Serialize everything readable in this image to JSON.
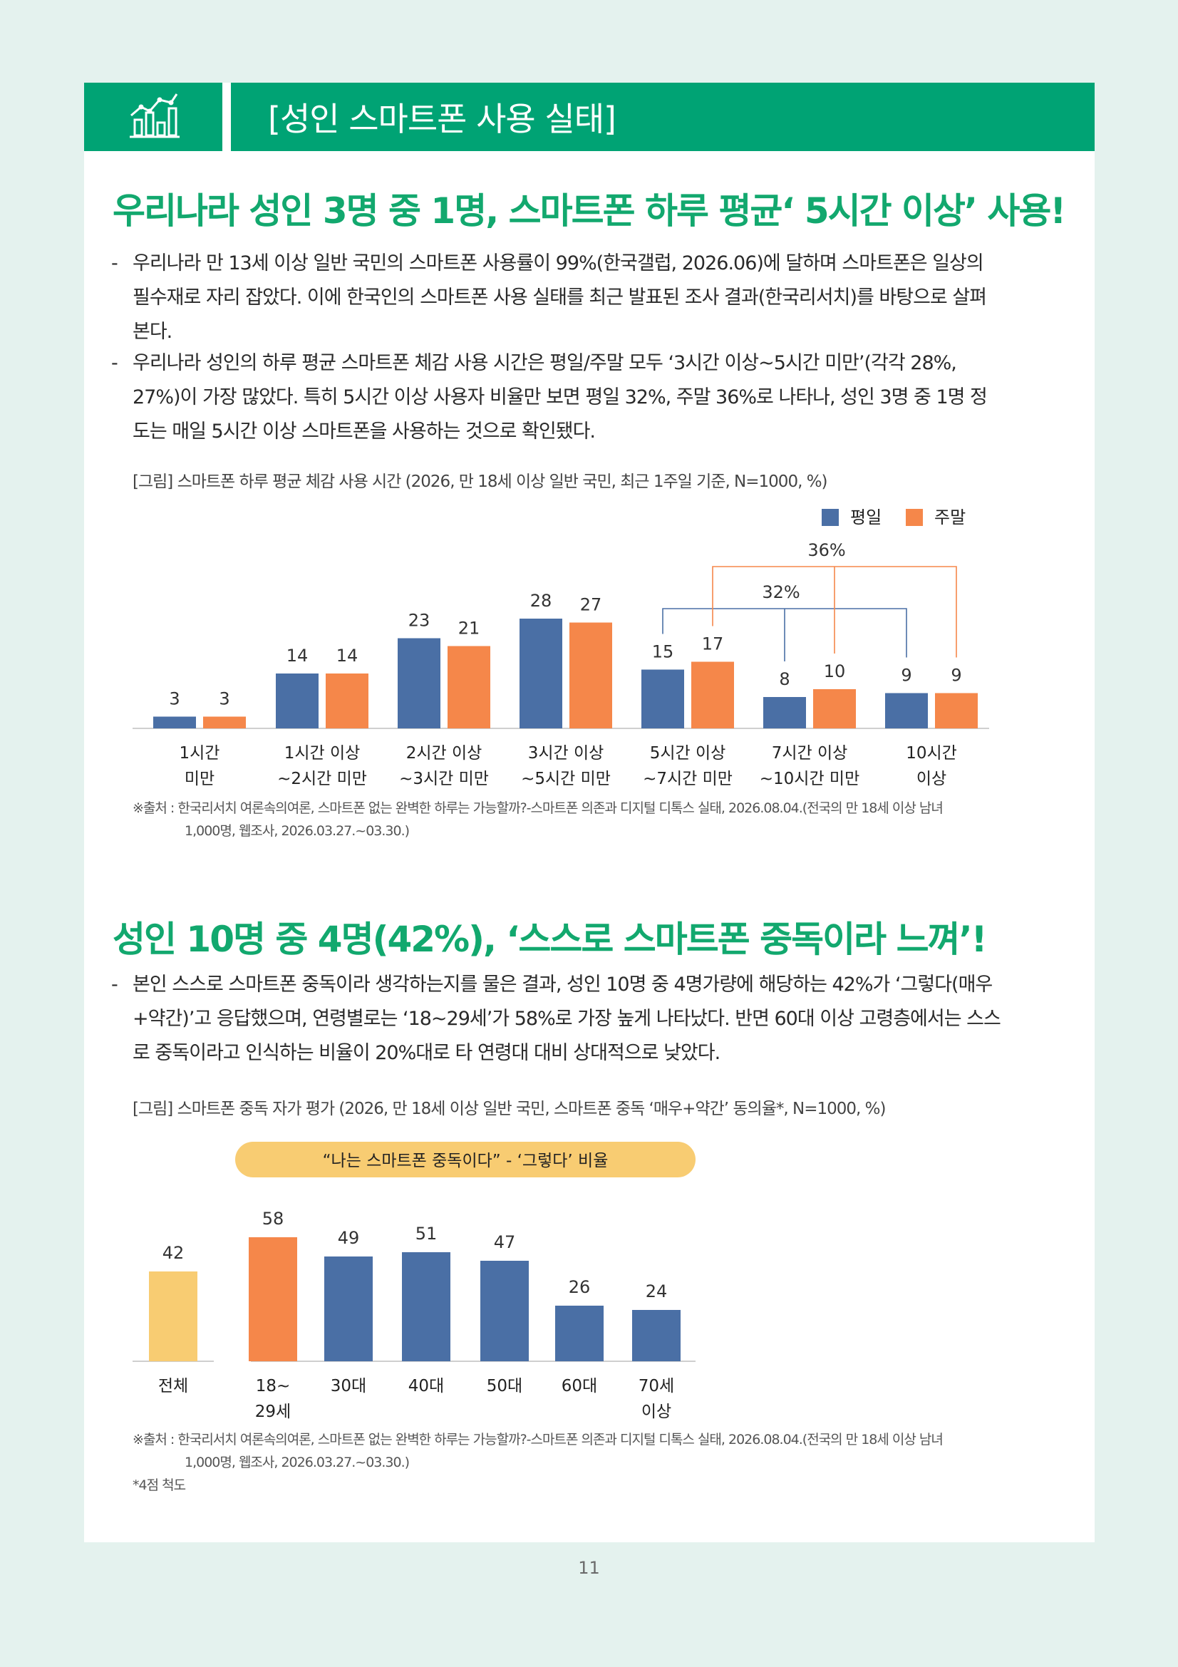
{
  "header": {
    "title": "[성인 스마트폰 사용 실태]",
    "icon": "bar-chart-growth-icon"
  },
  "section1": {
    "headline": "우리나라 성인 3명 중 1명, 스마트폰 하루 평균‘ 5시간 이상’ 사용!",
    "bullets": [
      {
        "line1": "우리나라 만 13세 이상 일반 국민의 스마트폰 사용률이 99%(한국갤럽, 2026.06)에 달하며 스마트폰은 일상의",
        "line2": "필수재로 자리 잡았다. 이에 한국인의 스마트폰 사용 실태를 최근 발표된 조사 결과(한국리서치)를 바탕으로 살펴",
        "line3": "본다."
      },
      {
        "line1": "우리나라 성인의 하루 평균 스마트폰 체감 사용 시간은 평일/주말 모두 ‘3시간 이상~5시간 미만’(각각 28%,",
        "line2": "27%)이 가장 많았다. 특히 5시간 이상 사용자 비율만 보면 평일 32%, 주말 36%로 나타나, 성인 3명 중 1명 정",
        "line3": "도는 매일 5시간 이상 스마트폰을 사용하는 것으로 확인됐다."
      }
    ],
    "caption": "[그림] 스마트폰 하루 평균 체감 사용 시간 (2026, 만 18세 이상 일반 국민, 최근 1주일 기준,  N=1000, %)",
    "source_line1": "※출처 : 한국리서치 여론속의여론, 스마트폰 없는 완벽한 하루는 가능할까?-스마트폰 의존과 디지털 디톡스 실태, 2026.08.04.(전국의 만 18세 이상 남녀",
    "source_line2": "1,000명, 웹조사, 2026.03.27.~03.30.)"
  },
  "chart1_data": {
    "type": "bar",
    "categories": [
      [
        "1시간",
        "미만"
      ],
      [
        "1시간 이상",
        "~2시간 미만"
      ],
      [
        "2시간 이상",
        "~3시간 미만"
      ],
      [
        "3시간 이상",
        "~5시간 미만"
      ],
      [
        "5시간 이상",
        "~7시간 미만"
      ],
      [
        "7시간 이상",
        "~10시간 미만"
      ],
      [
        "10시간",
        "이상"
      ]
    ],
    "series": [
      {
        "name": "평일",
        "values": [
          3,
          14,
          23,
          28,
          15,
          8,
          9
        ],
        "color": "#4a6fa5"
      },
      {
        "name": "주말",
        "values": [
          3,
          14,
          21,
          27,
          17,
          10,
          9
        ],
        "color": "#f5874a"
      }
    ],
    "bracket_labels": [
      "32%",
      "36%"
    ],
    "legend_position": "top-right",
    "ylim": [
      0,
      30
    ]
  },
  "section2": {
    "headline": "성인 10명 중 4명(42%), ‘스스로 스마트폰 중독이라 느껴’!",
    "bullets": [
      {
        "line1": "본인 스스로 스마트폰 중독이라 생각하는지를 물은 결과, 성인 10명 중 4명가량에 해당하는 42%가 ‘그렇다(매우",
        "line2": "+약간)’고 응답했으며, 연령별로는 ‘18~29세’가 58%로 가장 높게 나타났다. 반면 60대 이상 고령층에서는 스스",
        "line3": "로 중독이라고 인식하는 비율이 20%대로 타 연령대 대비 상대적으로 낮았다."
      }
    ],
    "caption": "[그림] 스마트폰 중독 자가 평가 (2026, 만 18세 이상 일반 국민, 스마트폰 중독 ‘매우+약간’ 동의율*, N=1000, %)",
    "source_line1": "※출처 : 한국리서치 여론속의여론, 스마트폰 없는 완벽한 하루는 가능할까?-스마트폰 의존과 디지털 디톡스 실태, 2026.08.04.(전국의 만 18세 이상 남녀",
    "source_line2": "1,000명, 웹조사, 2026.03.27.~03.30.)",
    "footnote": "*4점 척도"
  },
  "chart2_data": {
    "type": "bar",
    "pill_label": "“나는 스마트폰 중독이다” - ‘그렇다’ 비율",
    "categories": [
      [
        "전체"
      ],
      [
        "18~",
        "29세"
      ],
      [
        "30대"
      ],
      [
        "40대"
      ],
      [
        "50대"
      ],
      [
        "60대"
      ],
      [
        "70세",
        "이상"
      ]
    ],
    "values": [
      42,
      58,
      49,
      51,
      47,
      26,
      24
    ],
    "colors": [
      "#f8cc72",
      "#f5874a",
      "#4a6fa5",
      "#4a6fa5",
      "#4a6fa5",
      "#4a6fa5",
      "#4a6fa5"
    ],
    "ylim": [
      0,
      60
    ]
  },
  "footer": {
    "page_number": "11"
  }
}
